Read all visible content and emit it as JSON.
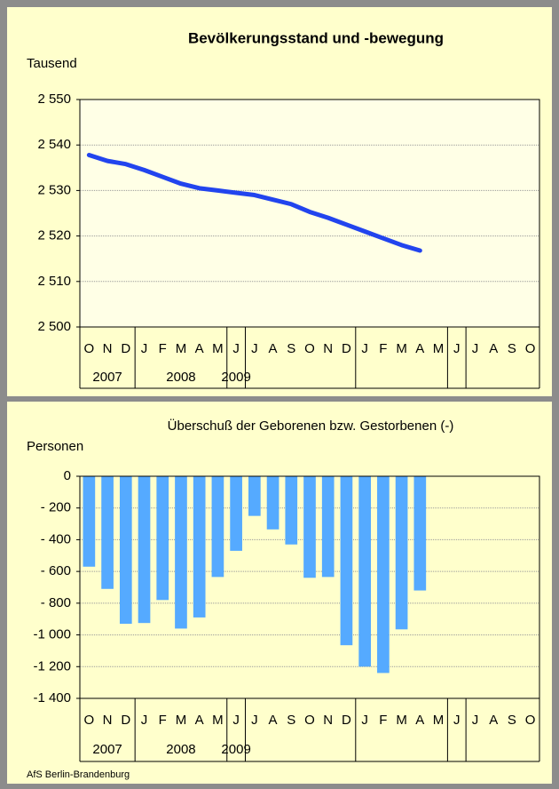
{
  "chart_data": [
    {
      "type": "line",
      "title": "Bevölkerungsstand und -bewegung",
      "ylabel": "Tausend",
      "categories": [
        "O",
        "N",
        "D",
        "J",
        "F",
        "M",
        "A",
        "M",
        "J",
        "J",
        "A",
        "S",
        "O",
        "N",
        "D",
        "J",
        "F",
        "M",
        "A",
        "M",
        "J",
        "J",
        "A",
        "S",
        "O"
      ],
      "years": [
        "2007",
        "2008",
        "2009"
      ],
      "values": [
        2537.8,
        2536.5,
        2535.8,
        2534.5,
        2533.0,
        2531.5,
        2530.5,
        2530.0,
        2529.5,
        2529.0,
        2528.0,
        2527.0,
        2525.3,
        2524.0,
        2522.5,
        2521.0,
        2519.5,
        2518.0,
        2516.8,
        null,
        null,
        null,
        null,
        null,
        null
      ],
      "color": "#2244ee",
      "ylim": [
        2500,
        2550
      ],
      "yticks": [
        {
          "value": 2500,
          "label": "2 500"
        },
        {
          "value": 2510,
          "label": "2 510"
        },
        {
          "value": 2520,
          "label": "2 520"
        },
        {
          "value": 2530,
          "label": "2 530"
        },
        {
          "value": 2540,
          "label": "2 540"
        },
        {
          "value": 2550,
          "label": "2 550"
        }
      ],
      "grid": true
    },
    {
      "type": "bar",
      "title": "Überschuß der Geborenen bzw. Gestorbenen (-)",
      "ylabel": "Personen",
      "categories": [
        "O",
        "N",
        "D",
        "J",
        "F",
        "M",
        "A",
        "M",
        "J",
        "J",
        "A",
        "S",
        "O",
        "N",
        "D",
        "J",
        "F",
        "M",
        "A",
        "M",
        "J",
        "J",
        "A",
        "S",
        "O"
      ],
      "years": [
        "2007",
        "2008",
        "2009"
      ],
      "values": [
        -570,
        -710,
        -930,
        -925,
        -780,
        -960,
        -890,
        -635,
        -470,
        -250,
        -335,
        -430,
        -640,
        -635,
        -1065,
        -1200,
        -1240,
        -965,
        -720,
        null,
        null,
        null,
        null,
        null,
        null
      ],
      "color": "#55aaff",
      "ylim": [
        -1400,
        0
      ],
      "yticks": [
        {
          "value": -1400,
          "label": "-1 400"
        },
        {
          "value": -1200,
          "label": "-1 200"
        },
        {
          "value": -1000,
          "label": "-1 000"
        },
        {
          "value": -800,
          "label": "- 800"
        },
        {
          "value": -600,
          "label": "- 600"
        },
        {
          "value": -400,
          "label": "- 400"
        },
        {
          "value": -200,
          "label": "- 200"
        },
        0
      ],
      "grid": true
    }
  ],
  "footer": "AfS Berlin-Brandenburg"
}
